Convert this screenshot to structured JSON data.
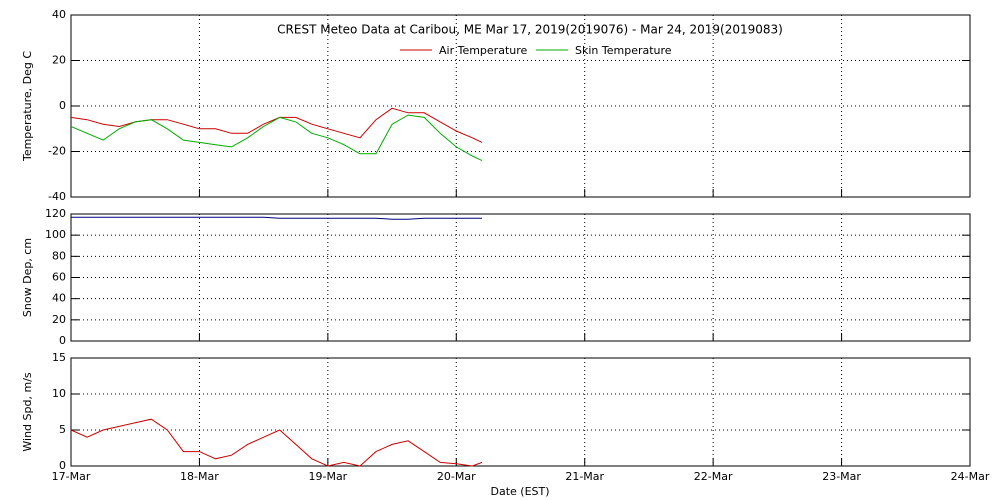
{
  "chart_data": {
    "type": "line",
    "title": "CREST Meteo Data at Caribou, ME   Mar 17, 2019(2019076) - Mar 24, 2019(2019083)",
    "xlabel": "Date (EST)",
    "xlim": [
      17,
      24
    ],
    "xticks": [
      {
        "value": 17,
        "label": "17-Mar"
      },
      {
        "value": 18,
        "label": "18-Mar"
      },
      {
        "value": 19,
        "label": "19-Mar"
      },
      {
        "value": 20,
        "label": "20-Mar"
      },
      {
        "value": 21,
        "label": "21-Mar"
      },
      {
        "value": 22,
        "label": "22-Mar"
      },
      {
        "value": 23,
        "label": "23-Mar"
      },
      {
        "value": 24,
        "label": "24-Mar"
      }
    ],
    "grid": true,
    "x": [
      17,
      17.125,
      17.25,
      17.375,
      17.5,
      17.625,
      17.75,
      17.875,
      18,
      18.125,
      18.25,
      18.375,
      18.5,
      18.625,
      18.75,
      18.875,
      19,
      19.125,
      19.25,
      19.375,
      19.5,
      19.625,
      19.75,
      19.875,
      20,
      20.125,
      20.2
    ],
    "panels": [
      {
        "ylabel": "Temperature, Deg C",
        "ylim": [
          -40,
          40
        ],
        "yticks": [
          -40,
          -20,
          0,
          20,
          40
        ],
        "legend": "top",
        "series": [
          {
            "name": "Air Temperature",
            "color": "#cc0000",
            "values": [
              -5,
              -6,
              -8,
              -9,
              -7,
              -6,
              -6,
              -8,
              -10,
              -10,
              -12,
              -12,
              -8,
              -5,
              -5,
              -8,
              -10,
              -12,
              -14,
              -6,
              -1,
              -3,
              -3,
              -7,
              -11,
              -14,
              -16
            ]
          },
          {
            "name": "Skin Temperature",
            "color": "#00aa00",
            "values": [
              -9,
              -12,
              -15,
              -10,
              -7,
              -6,
              -10,
              -15,
              -16,
              -17,
              -18,
              -14,
              -9,
              -5,
              -7,
              -12,
              -14,
              -17,
              -21,
              -21,
              -8,
              -4,
              -5,
              -12,
              -18,
              -22,
              -24
            ]
          }
        ]
      },
      {
        "ylabel": "Snow Dep, cm",
        "ylim": [
          0,
          120
        ],
        "yticks": [
          0,
          20,
          40,
          60,
          80,
          100,
          120
        ],
        "series": [
          {
            "color": "#000080",
            "values": [
              117,
              117,
              117,
              117,
              117,
              117,
              117,
              117,
              117,
              117,
              117,
              117,
              117,
              116,
              116,
              116,
              116,
              116,
              116,
              116,
              115,
              115,
              116,
              116,
              116,
              116,
              116
            ]
          }
        ]
      },
      {
        "ylabel": "Wind Spd, m/s",
        "ylim": [
          0,
          15
        ],
        "yticks": [
          0,
          5,
          10,
          15
        ],
        "series": [
          {
            "color": "#cc0000",
            "values": [
              5,
              4,
              5,
              5.5,
              6,
              6.5,
              5,
              2,
              2,
              1,
              1.5,
              3,
              4,
              5,
              3,
              1,
              0,
              0.5,
              0,
              2,
              3,
              3.5,
              2,
              0.5,
              0.3,
              0,
              0.5
            ]
          }
        ]
      }
    ]
  }
}
